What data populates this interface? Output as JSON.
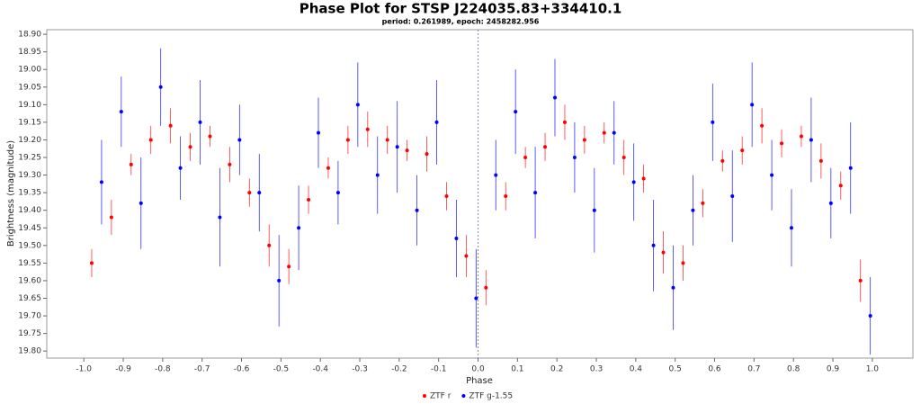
{
  "chart_data": {
    "type": "scatter",
    "title": "Phase Plot for STSP J224035.83+334410.1",
    "subtitle": "period: 0.261989, epoch: 2458282.956",
    "xlabel": "Phase",
    "ylabel": "Brightness (magnitude)",
    "xlim": [
      -1.094,
      1.103
    ],
    "ylim": [
      18.887,
      19.82
    ],
    "y_inverted": true,
    "xticks": [
      {
        "value": -1.0,
        "label": "-1.0"
      },
      -0.9,
      -0.8,
      -0.7,
      -0.6,
      -0.5,
      -0.4,
      -0.3,
      -0.2,
      -0.1,
      {
        "value": 0,
        "label": "0.0"
      },
      0.1,
      0.2,
      0.3,
      0.4,
      0.5,
      0.6,
      0.7,
      0.8,
      0.9,
      {
        "value": 1.0,
        "label": "1.0"
      }
    ],
    "yticks": [
      {
        "value": 18.9,
        "label": "18.90"
      },
      {
        "value": 18.95,
        "label": "18.95"
      },
      {
        "value": 19.0,
        "label": "19.00"
      },
      {
        "value": 19.05,
        "label": "19.05"
      },
      {
        "value": 19.1,
        "label": "19.10"
      },
      {
        "value": 19.15,
        "label": "19.15"
      },
      {
        "value": 19.2,
        "label": "19.20"
      },
      {
        "value": 19.25,
        "label": "19.25"
      },
      {
        "value": 19.3,
        "label": "19.30"
      },
      {
        "value": 19.35,
        "label": "19.35"
      },
      {
        "value": 19.4,
        "label": "19.40"
      },
      {
        "value": 19.45,
        "label": "19.45"
      },
      {
        "value": 19.5,
        "label": "19.50"
      },
      {
        "value": 19.55,
        "label": "19.55"
      },
      {
        "value": 19.6,
        "label": "19.60"
      },
      {
        "value": 19.65,
        "label": "19.65"
      },
      {
        "value": 19.7,
        "label": "19.70"
      },
      {
        "value": 19.75,
        "label": "19.75"
      },
      {
        "value": 19.8,
        "label": "19.80"
      }
    ],
    "zero_line": 0,
    "series": [
      {
        "name": "ZTF g-1.55",
        "color": "#0000ff",
        "x": [
          -0.955,
          -0.905,
          -0.855,
          -0.805,
          -0.755,
          -0.705,
          -0.655,
          -0.605,
          -0.555,
          -0.505,
          -0.455,
          -0.405,
          -0.355,
          -0.305,
          -0.255,
          -0.205,
          -0.155,
          -0.105,
          -0.055,
          -0.005,
          0.045,
          0.095,
          0.145,
          0.195,
          0.245,
          0.295,
          0.345,
          0.395,
          0.445,
          0.495,
          0.545,
          0.595,
          0.645,
          0.695,
          0.745,
          0.795,
          0.845,
          0.895,
          0.945,
          0.995
        ],
        "values": [
          19.32,
          19.12,
          19.38,
          19.05,
          19.28,
          19.15,
          19.42,
          19.2,
          19.35,
          19.6,
          19.45,
          19.18,
          19.35,
          19.1,
          19.3,
          19.22,
          19.4,
          19.15,
          19.48,
          19.65,
          19.3,
          19.12,
          19.35,
          19.08,
          19.25,
          19.4,
          19.18,
          19.32,
          19.5,
          19.62,
          19.4,
          19.15,
          19.36,
          19.1,
          19.3,
          19.45,
          19.2,
          19.38,
          19.28,
          19.7
        ],
        "errors": [
          0.12,
          0.1,
          0.13,
          0.11,
          0.09,
          0.12,
          0.14,
          0.1,
          0.11,
          0.13,
          0.12,
          0.1,
          0.09,
          0.12,
          0.11,
          0.13,
          0.1,
          0.12,
          0.11,
          0.14,
          0.1,
          0.12,
          0.13,
          0.11,
          0.1,
          0.12,
          0.09,
          0.11,
          0.13,
          0.12,
          0.1,
          0.11,
          0.13,
          0.12,
          0.1,
          0.11,
          0.12,
          0.1,
          0.13,
          0.11
        ]
      },
      {
        "name": "ZTF r",
        "color": "#ff0000",
        "x": [
          -0.98,
          -0.93,
          -0.88,
          -0.83,
          -0.78,
          -0.73,
          -0.68,
          -0.63,
          -0.58,
          -0.53,
          -0.48,
          -0.43,
          -0.38,
          -0.33,
          -0.28,
          -0.23,
          -0.18,
          -0.13,
          -0.08,
          -0.03,
          0.02,
          0.07,
          0.12,
          0.17,
          0.22,
          0.27,
          0.32,
          0.37,
          0.42,
          0.47,
          0.52,
          0.57,
          0.62,
          0.67,
          0.72,
          0.77,
          0.82,
          0.87,
          0.92,
          0.97
        ],
        "values": [
          19.55,
          19.42,
          19.27,
          19.2,
          19.16,
          19.22,
          19.19,
          19.27,
          19.35,
          19.5,
          19.56,
          19.37,
          19.28,
          19.2,
          19.17,
          19.2,
          19.23,
          19.24,
          19.36,
          19.53,
          19.62,
          19.36,
          19.25,
          19.22,
          19.15,
          19.2,
          19.18,
          19.25,
          19.31,
          19.52,
          19.55,
          19.38,
          19.26,
          19.23,
          19.16,
          19.21,
          19.19,
          19.26,
          19.33,
          19.6
        ],
        "errors": [
          0.04,
          0.05,
          0.03,
          0.04,
          0.05,
          0.04,
          0.03,
          0.05,
          0.04,
          0.06,
          0.05,
          0.04,
          0.03,
          0.04,
          0.05,
          0.04,
          0.03,
          0.05,
          0.04,
          0.06,
          0.05,
          0.04,
          0.03,
          0.04,
          0.05,
          0.04,
          0.03,
          0.05,
          0.04,
          0.06,
          0.05,
          0.04,
          0.03,
          0.04,
          0.05,
          0.04,
          0.03,
          0.05,
          0.04,
          0.06
        ]
      }
    ]
  }
}
